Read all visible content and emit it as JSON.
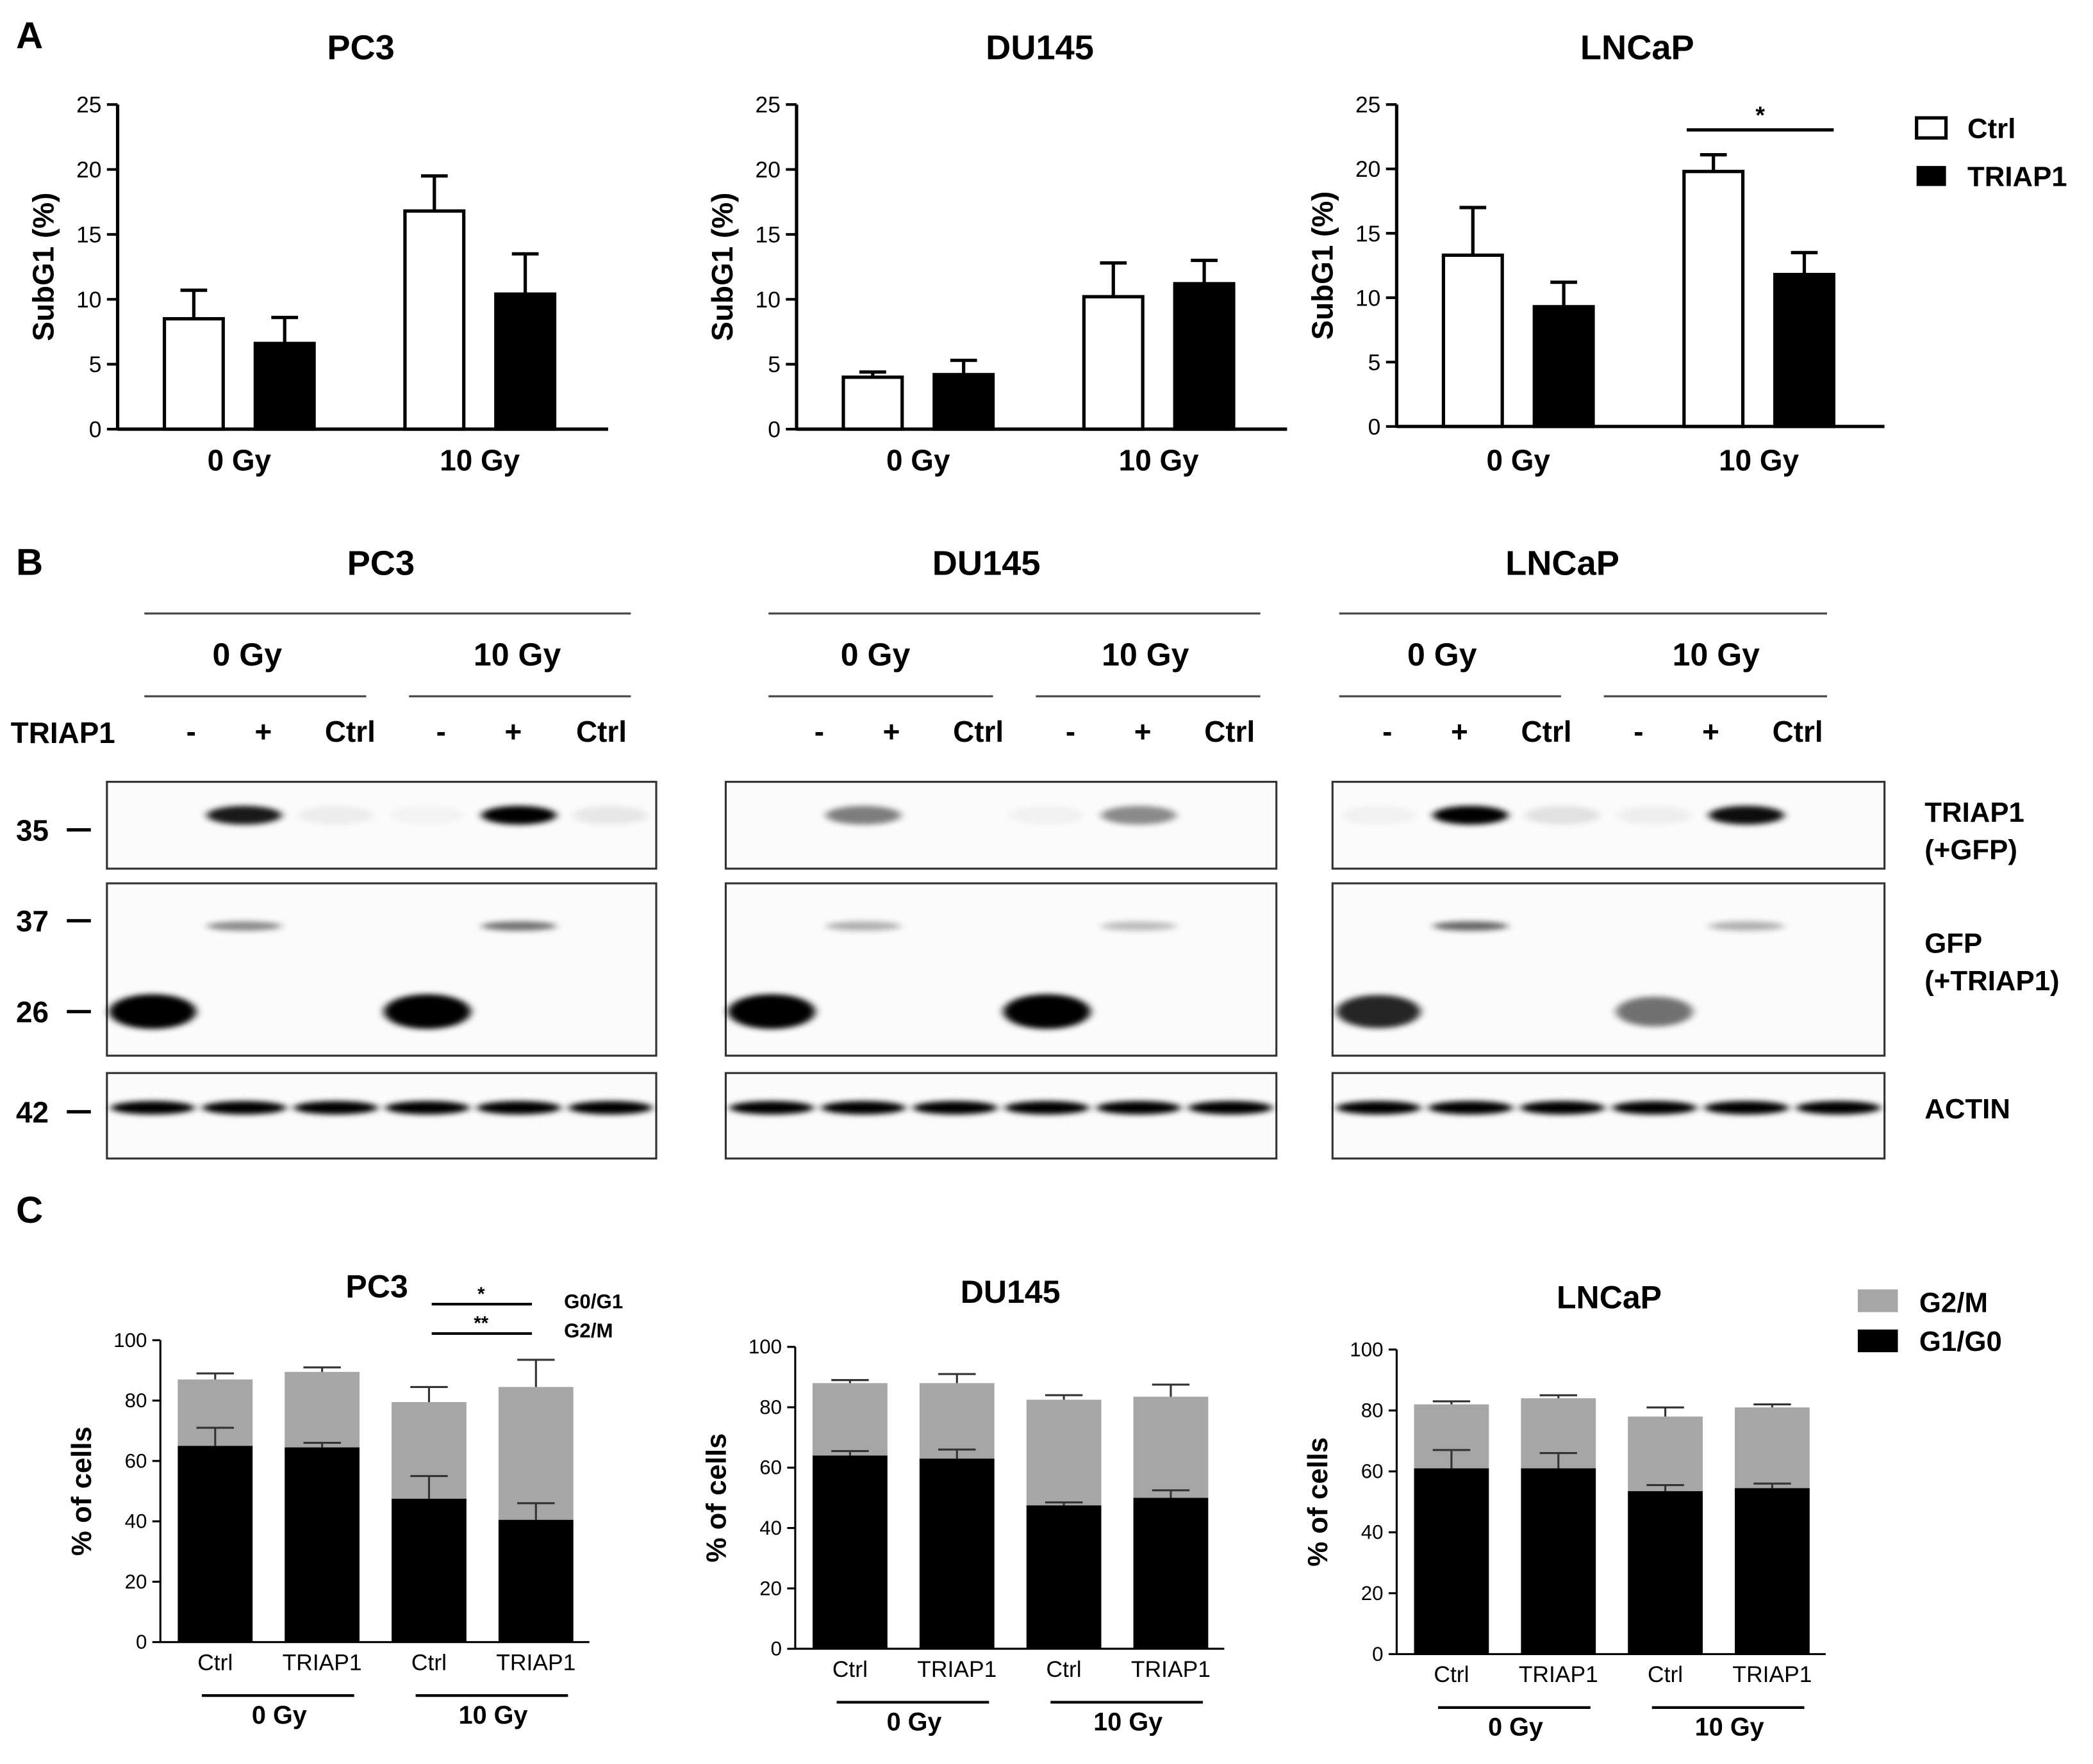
{
  "panel_letters": {
    "a": "A",
    "b": "B",
    "c": "C"
  },
  "legend_a": {
    "open_label": "Ctrl",
    "filled_label": "TRIAP1"
  },
  "legend_c": {
    "top_label": "G2/M",
    "bottom_label": "G1/G0",
    "top_color": "#a6a6a6",
    "bottom_color": "#000000"
  },
  "chart_data": [
    {
      "panel": "A",
      "type": "bar",
      "title": "PC3",
      "ylabel": "SubG1 (%)",
      "ylim": [
        0,
        25
      ],
      "yticks": [
        "0",
        "5",
        "10",
        "15",
        "20",
        "25"
      ],
      "groups": [
        "0 Gy",
        "10 Gy"
      ],
      "series": [
        {
          "name": "Ctrl",
          "fill": "open",
          "values": [
            8.5,
            16.8
          ],
          "errors": [
            2.2,
            2.7
          ]
        },
        {
          "name": "TRIAP1",
          "fill": "filled",
          "values": [
            6.6,
            10.4
          ],
          "errors": [
            2.0,
            3.1
          ]
        }
      ],
      "annotations": []
    },
    {
      "panel": "A",
      "type": "bar",
      "title": "DU145",
      "ylabel": "SubG1 (%)",
      "ylim": [
        0,
        25
      ],
      "yticks": [
        "0",
        "5",
        "10",
        "15",
        "20",
        "25"
      ],
      "groups": [
        "0 Gy",
        "10 Gy"
      ],
      "series": [
        {
          "name": "Ctrl",
          "fill": "open",
          "values": [
            4.0,
            10.2
          ],
          "errors": [
            0.4,
            2.6
          ]
        },
        {
          "name": "TRIAP1",
          "fill": "filled",
          "values": [
            4.2,
            11.2
          ],
          "errors": [
            1.1,
            1.8
          ]
        }
      ],
      "annotations": []
    },
    {
      "panel": "A",
      "type": "bar",
      "title": "LNCaP",
      "ylabel": "SubG1 (%)",
      "ylim": [
        0,
        25
      ],
      "yticks": [
        "0",
        "5",
        "10",
        "15",
        "20",
        "25"
      ],
      "groups": [
        "0 Gy",
        "10 Gy"
      ],
      "series": [
        {
          "name": "Ctrl",
          "fill": "open",
          "values": [
            13.3,
            19.8
          ],
          "errors": [
            3.7,
            1.3
          ]
        },
        {
          "name": "TRIAP1",
          "fill": "filled",
          "values": [
            9.3,
            11.8
          ],
          "errors": [
            1.9,
            1.7
          ]
        }
      ],
      "annotations": [
        {
          "text": "*",
          "group": 1
        }
      ]
    },
    {
      "panel": "C",
      "type": "bar",
      "stacked": true,
      "title": "PC3",
      "ylabel": "% of cells",
      "ylim": [
        0,
        100
      ],
      "yticks": [
        "0",
        "20",
        "40",
        "60",
        "80",
        "100"
      ],
      "categories": [
        "Ctrl",
        "TRIAP1",
        "Ctrl",
        "TRIAP1"
      ],
      "groups": [
        "0 Gy",
        "10 Gy"
      ],
      "series": [
        {
          "name": "G1/G0",
          "values": [
            65,
            64.5,
            47.5,
            40.5
          ],
          "errors": [
            6,
            1.5,
            7.5,
            5.5
          ]
        },
        {
          "name": "G2/M",
          "values": [
            22,
            25,
            32,
            44
          ],
          "errors": [
            2,
            1.5,
            5,
            9
          ]
        }
      ],
      "sig": [
        {
          "text": "*",
          "label": "G0/G1"
        },
        {
          "text": "**",
          "label": "G2/M"
        }
      ]
    },
    {
      "panel": "C",
      "type": "bar",
      "stacked": true,
      "title": "DU145",
      "ylabel": "% of cells",
      "ylim": [
        0,
        100
      ],
      "yticks": [
        "0",
        "20",
        "40",
        "60",
        "80",
        "100"
      ],
      "categories": [
        "Ctrl",
        "TRIAP1",
        "Ctrl",
        "TRIAP1"
      ],
      "groups": [
        "0 Gy",
        "10 Gy"
      ],
      "series": [
        {
          "name": "G1/G0",
          "values": [
            64,
            63,
            47.5,
            50
          ],
          "errors": [
            1.5,
            3,
            1,
            2.5
          ]
        },
        {
          "name": "G2/M",
          "values": [
            24,
            25,
            35,
            33.5
          ],
          "errors": [
            1,
            3,
            1.5,
            4
          ]
        }
      ],
      "sig": []
    },
    {
      "panel": "C",
      "type": "bar",
      "stacked": true,
      "title": "LNCaP",
      "ylabel": "% of cells",
      "ylim": [
        0,
        100
      ],
      "yticks": [
        "0",
        "20",
        "40",
        "60",
        "80",
        "100"
      ],
      "categories": [
        "Ctrl",
        "TRIAP1",
        "Ctrl",
        "TRIAP1"
      ],
      "groups": [
        "0 Gy",
        "10 Gy"
      ],
      "series": [
        {
          "name": "G1/G0",
          "values": [
            61,
            61,
            53.5,
            54.5
          ],
          "errors": [
            6,
            5,
            2,
            1.5
          ]
        },
        {
          "name": "G2/M",
          "values": [
            21,
            23,
            24.5,
            26.5
          ],
          "errors": [
            1,
            1,
            3,
            1
          ]
        }
      ],
      "sig": []
    }
  ],
  "western_blot": {
    "row_label": "TRIAP1",
    "lane_labels": [
      "-",
      "+",
      "Ctrl",
      "-",
      "+",
      "Ctrl"
    ],
    "dose_labels": [
      "0 Gy",
      "10 Gy"
    ],
    "panels": [
      {
        "title": "PC3",
        "lanes": {
          "triap1": [
            0,
            0.9,
            0.06,
            0.03,
            1.0,
            0.08
          ],
          "gfp37": [
            0,
            0.45,
            0,
            0,
            0.55,
            0
          ],
          "gfp26": [
            1.0,
            0,
            0,
            1.0,
            0,
            0
          ],
          "actin": [
            1,
            1,
            1,
            1,
            1,
            1
          ]
        }
      },
      {
        "title": "DU145",
        "lanes": {
          "triap1": [
            0,
            0.5,
            0,
            0.04,
            0.45,
            0
          ],
          "gfp37": [
            0,
            0.3,
            0,
            0,
            0.25,
            0
          ],
          "gfp26": [
            1.0,
            0,
            0,
            1.0,
            0,
            0
          ],
          "actin": [
            1,
            1,
            1,
            1,
            1,
            1
          ]
        }
      },
      {
        "title": "LNCaP",
        "lanes": {
          "triap1": [
            0.04,
            1.0,
            0.1,
            0.05,
            0.95,
            0
          ],
          "gfp37": [
            0,
            0.6,
            0,
            0,
            0.3,
            0
          ],
          "gfp26": [
            0.85,
            0,
            0,
            0.55,
            0,
            0
          ],
          "actin": [
            1,
            1,
            1,
            1,
            1,
            1
          ]
        }
      }
    ],
    "mw_markers": [
      "35",
      "37",
      "26",
      "42"
    ],
    "blot_labels": [
      {
        "lines": [
          "TRIAP1",
          "(+GFP)"
        ]
      },
      {
        "lines": [
          "GFP",
          "(+TRIAP1)"
        ]
      },
      {
        "lines": [
          "ACTIN"
        ]
      }
    ]
  }
}
